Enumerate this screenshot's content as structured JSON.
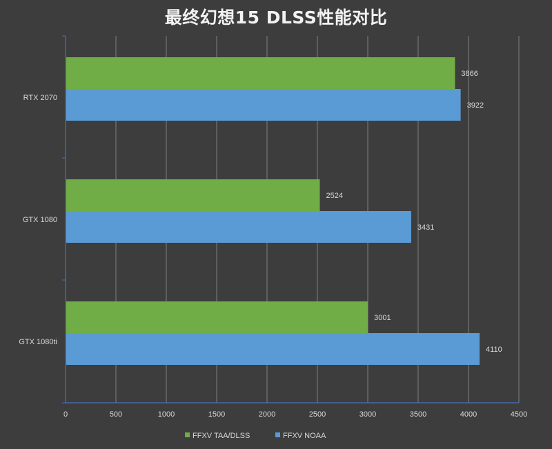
{
  "chart_data": {
    "type": "bar",
    "orientation": "horizontal",
    "title": "最终幻想15 DLSS性能对比",
    "categories": [
      "RTX 2070",
      "GTX 1080",
      "GTX 1080ti"
    ],
    "series": [
      {
        "name": "FFXV TAA/DLSS",
        "values": [
          3866,
          2524,
          3001
        ],
        "color": "#70ad47"
      },
      {
        "name": "FFXV NOAA",
        "values": [
          3922,
          3431,
          4110
        ],
        "color": "#5b9bd5"
      }
    ],
    "xlim": [
      0,
      4500
    ],
    "xticks": [
      0,
      500,
      1000,
      1500,
      2000,
      2500,
      3000,
      3500,
      4000,
      4500
    ],
    "grid": true,
    "legend": "bottom",
    "xlabel": "",
    "ylabel": ""
  },
  "colors": {
    "background": "#3d3d3d",
    "gridline": "#7f7f7f",
    "axis": "#4472c4",
    "text": "#d9d9d9"
  }
}
